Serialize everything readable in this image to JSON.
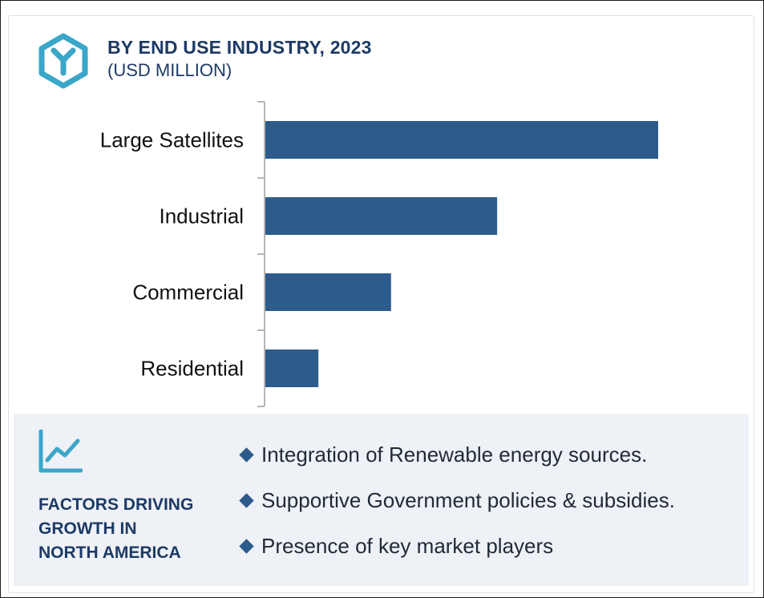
{
  "header": {
    "title": "BY END USE INDUSTRY, 2023",
    "subtitle": "(USD MILLION)",
    "icon": "hexagon-logo-icon"
  },
  "chart_data": {
    "type": "bar",
    "orientation": "horizontal",
    "categories": [
      "Large Satellites",
      "Industrial",
      "Commercial",
      "Residential"
    ],
    "values": [
      100,
      59,
      32,
      13.5
    ],
    "title": "BY END USE INDUSTRY, 2023",
    "subtitle": "(USD MILLION)",
    "xlabel": "",
    "ylabel": "",
    "xlim": [
      0,
      100
    ],
    "grid": false,
    "legend": "none",
    "bar_color": "#2d5c8c"
  },
  "factors": {
    "icon": "trend-chart-icon",
    "heading_lines": [
      "FACTORS DRIVING",
      "GROWTH IN",
      "NORTH AMERICA"
    ],
    "items": [
      "Integration of Renewable energy sources.",
      "Supportive Government policies & subsidies.",
      "Presence of key market players"
    ]
  },
  "colors": {
    "accent": "#2d5c8c",
    "heading": "#1d3a66",
    "teal": "#3aa6c8",
    "panel": "#eef1f6"
  }
}
